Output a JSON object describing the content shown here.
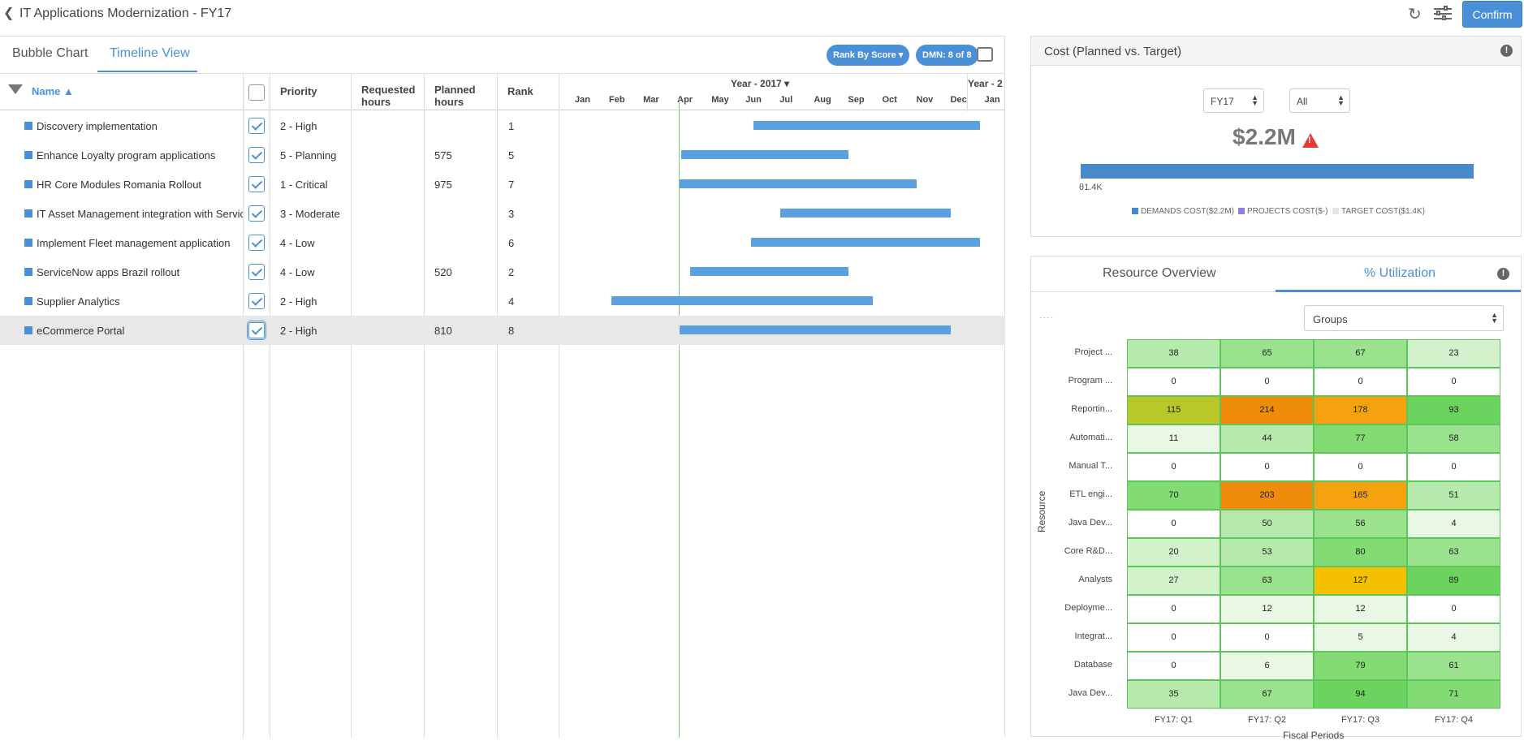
{
  "header": {
    "title": "IT Applications Modernization - FY17",
    "confirm_label": "Confirm"
  },
  "left": {
    "tabs": [
      "Bubble Chart",
      "Timeline View"
    ],
    "rank_pill": "Rank By Score",
    "dmn_pill": "DMN: 8 of 8",
    "columns": {
      "name": "Name ▲",
      "priority": "Priority",
      "requested": "Requested hours",
      "planned": "Planned hours",
      "rank": "Rank",
      "year": "Year - 2017 ▾",
      "year_next": "Year - 2"
    },
    "months": [
      "Jan",
      "Feb",
      "Mar",
      "Apr",
      "May",
      "Jun",
      "Jul",
      "Aug",
      "Sep",
      "Oct",
      "Nov",
      "Dec",
      "Jan"
    ],
    "rows": [
      {
        "name": "Discovery implementation",
        "priority": "2 - High",
        "requested": "",
        "planned": "",
        "rank": "1",
        "start_month": 5.65,
        "end_month": 12.3
      },
      {
        "name": "Enhance Loyalty program applications",
        "priority": "5 - Planning",
        "requested": "",
        "planned": "575",
        "rank": "5",
        "start_month": 3.55,
        "end_month": 8.45
      },
      {
        "name": "HR Core Modules Romania Rollout",
        "priority": "1 - Critical",
        "requested": "",
        "planned": "975",
        "rank": "7",
        "start_month": 3.5,
        "end_month": 10.45
      },
      {
        "name": "IT Asset Management integration with Service c",
        "priority": "3 - Moderate",
        "requested": "",
        "planned": "",
        "rank": "3",
        "start_month": 6.45,
        "end_month": 11.45
      },
      {
        "name": "Implement Fleet management application",
        "priority": "4 - Low",
        "requested": "",
        "planned": "",
        "rank": "6",
        "start_month": 5.6,
        "end_month": 12.3
      },
      {
        "name": "ServiceNow apps Brazil rollout",
        "priority": "4 - Low",
        "requested": "",
        "planned": "520",
        "rank": "2",
        "start_month": 3.8,
        "end_month": 8.45
      },
      {
        "name": "Supplier Analytics",
        "priority": "2 - High",
        "requested": "",
        "planned": "",
        "rank": "4",
        "start_month": 1.5,
        "end_month": 9.15
      },
      {
        "name": "eCommerce Portal",
        "priority": "2 - High",
        "requested": "",
        "planned": "810",
        "rank": "8",
        "start_month": 3.5,
        "end_month": 11.45
      }
    ]
  },
  "cost": {
    "title": "Cost (Planned vs. Target)",
    "fy_select": "FY17",
    "scope_select": "All",
    "big_value": "$2.2M",
    "tick": "θ1.4K",
    "legend": [
      {
        "label": "DEMANDS COST($2.2M)",
        "color": "#4a88cc"
      },
      {
        "label": "PROJECTS COST($-)",
        "color": "#8a7fe0"
      },
      {
        "label": "TARGET COST($1.4K)",
        "color": "#e6e6e6"
      }
    ]
  },
  "resource": {
    "tabs": [
      "Resource Overview",
      "% Utilization"
    ],
    "groups_select": "Groups",
    "y_axis": "Resource",
    "x_axis": "Fiscal Periods",
    "quarters": [
      "FY17: Q1",
      "FY17: Q2",
      "FY17: Q3",
      "FY17: Q4"
    ],
    "rows": [
      {
        "label": "Project ...",
        "values": [
          38,
          65,
          67,
          23
        ]
      },
      {
        "label": "Program ...",
        "values": [
          0,
          0,
          0,
          0
        ]
      },
      {
        "label": "Reportin...",
        "values": [
          115,
          214,
          178,
          93
        ]
      },
      {
        "label": "Automati...",
        "values": [
          11,
          44,
          77,
          58
        ]
      },
      {
        "label": "Manual T...",
        "values": [
          0,
          0,
          0,
          0
        ]
      },
      {
        "label": "ETL engi...",
        "values": [
          70,
          203,
          165,
          51
        ]
      },
      {
        "label": "Java Dev...",
        "values": [
          0,
          50,
          56,
          4
        ]
      },
      {
        "label": "Core R&D...",
        "values": [
          20,
          53,
          80,
          63
        ]
      },
      {
        "label": "Analysts",
        "values": [
          27,
          63,
          127,
          89
        ]
      },
      {
        "label": "Deployme...",
        "values": [
          0,
          12,
          12,
          0
        ]
      },
      {
        "label": "Integrat...",
        "values": [
          0,
          0,
          5,
          4
        ]
      },
      {
        "label": "Database",
        "values": [
          0,
          6,
          79,
          61
        ]
      },
      {
        "label": "Java Dev...",
        "values": [
          35,
          67,
          94,
          71
        ]
      }
    ]
  }
}
